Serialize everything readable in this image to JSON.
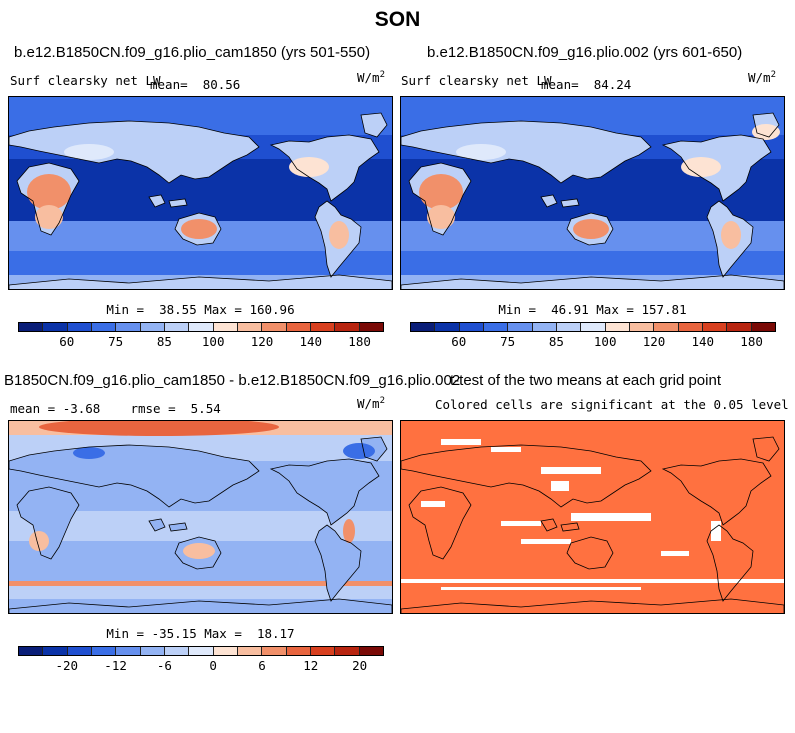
{
  "figure": {
    "title": "SON"
  },
  "panels": [
    {
      "id": "p1",
      "run": "b.e12.B1850CN.f09_g16.plio_cam1850 (yrs 501-550)",
      "variable": "Surf clearsky net LW",
      "mean_label": "mean=",
      "mean_value": "80.56",
      "units_base": "W/m",
      "units_exp": "2",
      "min_label": "Min =",
      "min_value": "38.55",
      "max_label": "Max =",
      "max_value": "160.96"
    },
    {
      "id": "p2",
      "run": "b.e12.B1850CN.f09_g16.plio.002 (yrs 601-650)",
      "variable": "Surf clearsky net LW",
      "mean_label": "mean=",
      "mean_value": "84.24",
      "units_base": "W/m",
      "units_exp": "2",
      "min_label": "Min =",
      "min_value": "46.91",
      "max_label": "Max =",
      "max_value": "157.81"
    },
    {
      "id": "p3",
      "run": "B1850CN.f09_g16.plio_cam1850 - b.e12.B1850CN.f09_g16.plio.002",
      "mean_label": "mean =",
      "mean_value": "-3.68",
      "rmse_label": "rmse =",
      "rmse_value": "5.54",
      "units_base": "W/m",
      "units_exp": "2",
      "min_label": "Min =",
      "min_value": "-35.15",
      "max_label": "Max =",
      "max_value": "18.17"
    },
    {
      "id": "p4",
      "run": "t-test of the two means at each grid point",
      "subtitle": "Colored cells are significant at the 0.05 level"
    }
  ],
  "colorbars": {
    "abs_ticks": [
      "60",
      "75",
      "85",
      "100",
      "120",
      "140",
      "180"
    ],
    "diff_ticks": [
      "-20",
      "-12",
      "-6",
      "0",
      "6",
      "12",
      "20"
    ],
    "colors": [
      "#0a1e78",
      "#0b33a8",
      "#1f4fd0",
      "#3a6ee6",
      "#6690ee",
      "#93b3f3",
      "#bcd0f7",
      "#dfe9fb",
      "#fde3d3",
      "#f8bea0",
      "#f1906a",
      "#e8653f",
      "#d8401f",
      "#b82510",
      "#7a0a06"
    ],
    "significance_color": "#ff7140"
  }
}
